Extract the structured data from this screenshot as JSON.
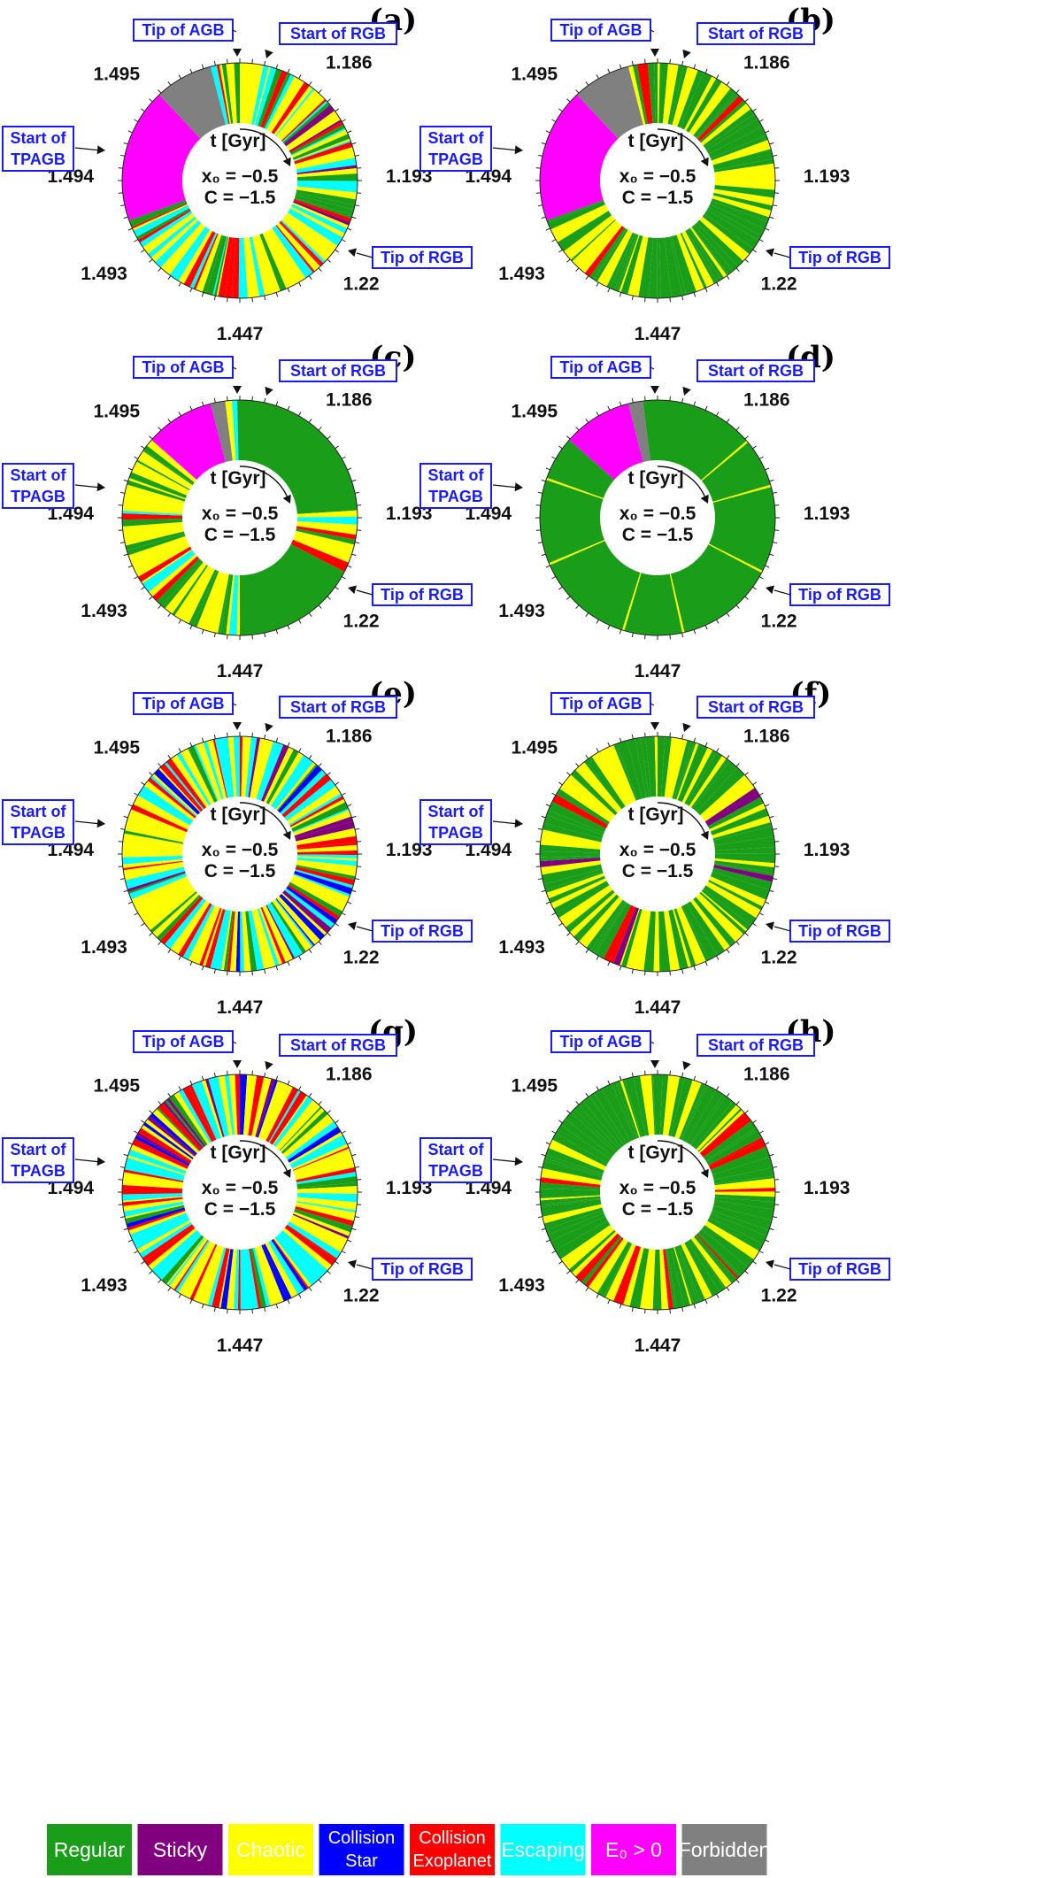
{
  "chart_data": [
    {
      "panel": "(a)",
      "type": "donut",
      "pattern": "a",
      "wedges": [
        {
          "label": "E0 > 0",
          "from": 0.695,
          "to": 0.88
        },
        {
          "label": "Forbidden",
          "from": 0.88,
          "to": 0.96
        }
      ]
    },
    {
      "panel": "(b)",
      "type": "donut",
      "pattern": "b",
      "wedges": [
        {
          "label": "E0 > 0",
          "from": 0.695,
          "to": 0.88
        },
        {
          "label": "Forbidden",
          "from": 0.88,
          "to": 0.96
        }
      ]
    },
    {
      "panel": "(c)",
      "type": "donut",
      "pattern": "c",
      "wedges": [
        {
          "label": "E0 > 0",
          "from": 0.865,
          "to": 0.96
        },
        {
          "label": "Forbidden",
          "from": 0.96,
          "to": 0.98
        }
      ]
    },
    {
      "panel": "(d)",
      "type": "donut",
      "pattern": "d",
      "wedges": [
        {
          "label": "E0 > 0",
          "from": 0.865,
          "to": 0.96
        },
        {
          "label": "Forbidden",
          "from": 0.96,
          "to": 0.98
        }
      ]
    },
    {
      "panel": "(e)",
      "type": "donut",
      "pattern": "e",
      "wedges": []
    },
    {
      "panel": "(f)",
      "type": "donut",
      "pattern": "f",
      "wedges": []
    },
    {
      "panel": "(g)",
      "type": "donut",
      "pattern": "g",
      "wedges": []
    },
    {
      "panel": "(h)",
      "type": "donut",
      "pattern": "h",
      "wedges": []
    }
  ],
  "common": {
    "center_lines": [
      "x₀ = −0.5",
      "C = −1.5"
    ],
    "time_label": "t [Gyr]",
    "tick_labels": [
      {
        "text": "1.186",
        "frac": 0.1
      },
      {
        "text": "1.193",
        "frac": 0.245
      },
      {
        "text": "1.22",
        "frac": 0.375
      },
      {
        "text": "1.447",
        "frac": 0.5
      },
      {
        "text": "1.493",
        "frac": 0.64
      },
      {
        "text": "1.494",
        "frac": 0.755
      },
      {
        "text": "1.495",
        "frac": 0.88
      }
    ],
    "callouts": [
      "Tip of AGB",
      "Start of RGB",
      "Start of",
      "TPAGB",
      "Tip of RGB"
    ]
  },
  "legend": [
    {
      "label": "Regular",
      "color": "#1a9e1a"
    },
    {
      "label": "Sticky",
      "color": "#800080"
    },
    {
      "label": "Chaotic",
      "color": "#ffff00"
    },
    {
      "label": "Collision\nStar",
      "color": "#0000ff"
    },
    {
      "label": "Collision\nExoplanet",
      "color": "#ff0000"
    },
    {
      "label": "Escaping",
      "color": "#00ffff"
    },
    {
      "label": "E₀ > 0",
      "color": "#ff00ff"
    },
    {
      "label": "Forbidden",
      "color": "#808080"
    }
  ]
}
